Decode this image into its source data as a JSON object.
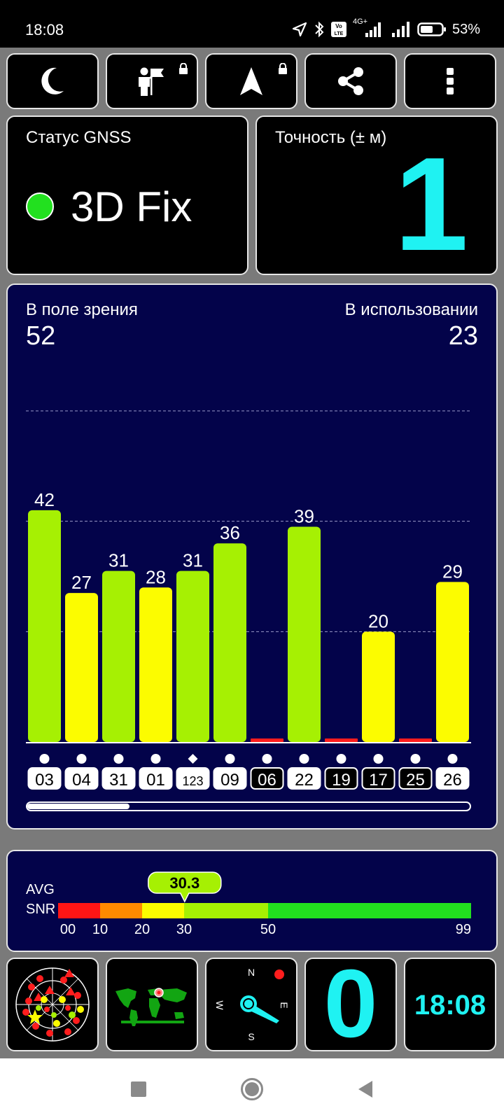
{
  "status_bar": {
    "time": "18:08",
    "battery": "53%",
    "network": "4G+",
    "icons": [
      "location-arrow-icon",
      "bluetooth-icon",
      "volte-icon",
      "signal-icon",
      "signal-icon",
      "battery-icon"
    ]
  },
  "toolbar": {
    "items": [
      {
        "name": "night-mode-button",
        "icon": "moon-icon",
        "locked": false
      },
      {
        "name": "waypoint-button",
        "icon": "person-flag-icon",
        "locked": true
      },
      {
        "name": "navigate-button",
        "icon": "navigation-arrow-icon",
        "locked": true
      },
      {
        "name": "share-button",
        "icon": "share-icon",
        "locked": false
      },
      {
        "name": "menu-button",
        "icon": "more-vertical-icon",
        "locked": false
      }
    ]
  },
  "gnss": {
    "label": "Статус GNSS",
    "value": "3D Fix",
    "status_color": "#22e01f"
  },
  "accuracy": {
    "label": "Точность (± м)",
    "value": "1",
    "color": "#1ff2f2"
  },
  "satellites": {
    "in_view_label": "В поле зрения",
    "in_view": "52",
    "in_use_label": "В использовании",
    "in_use": "23",
    "scroll_fraction": 0.23
  },
  "chart_data": {
    "type": "bar",
    "categories": [
      "03",
      "04",
      "31",
      "01",
      "123",
      "09",
      "06",
      "22",
      "19",
      "17",
      "25",
      "26"
    ],
    "values": [
      42,
      27,
      31,
      28,
      31,
      36,
      0,
      39,
      0,
      20,
      0,
      29
    ],
    "bar_colors": [
      "#a6f003",
      "#fcfc00",
      "#a6f003",
      "#fcfc00",
      "#a6f003",
      "#a6f003",
      "#ff1d1d",
      "#a6f003",
      "#ff1d1d",
      "#fcfc00",
      "#ff1d1d",
      "#fcfc00"
    ],
    "labels_shown": [
      true,
      true,
      true,
      true,
      true,
      true,
      false,
      true,
      false,
      true,
      false,
      true
    ],
    "used": [
      true,
      true,
      true,
      true,
      true,
      true,
      false,
      true,
      false,
      false,
      false,
      true
    ],
    "markers": [
      "circle",
      "circle",
      "circle",
      "circle",
      "diamond",
      "circle",
      "circle",
      "circle",
      "circle",
      "circle",
      "circle",
      "circle"
    ],
    "ylim": [
      0,
      60
    ],
    "gridlines": [
      20,
      40,
      60
    ]
  },
  "snr": {
    "avg_label": "AVG",
    "snr_label": "SNR",
    "value": "30.3",
    "value_number": 30.3,
    "ticks": [
      "00",
      "10",
      "20",
      "30",
      "50",
      "99"
    ],
    "segments": [
      {
        "from": 0,
        "to": 10,
        "color": "#ff1515"
      },
      {
        "from": 10,
        "to": 20,
        "color": "#ff8a00"
      },
      {
        "from": 20,
        "to": 30,
        "color": "#fcfc00"
      },
      {
        "from": 30,
        "to": 50,
        "color": "#a6f003"
      },
      {
        "from": 50,
        "to": 99,
        "color": "#22e01f"
      }
    ]
  },
  "bottom": {
    "speed": "0",
    "clock": "18:08",
    "compass": {
      "n": "N",
      "e": "E",
      "s": "S",
      "w": "W"
    }
  },
  "navbar": {
    "icons": [
      "recents-square-icon",
      "home-circle-icon",
      "back-triangle-icon"
    ]
  }
}
